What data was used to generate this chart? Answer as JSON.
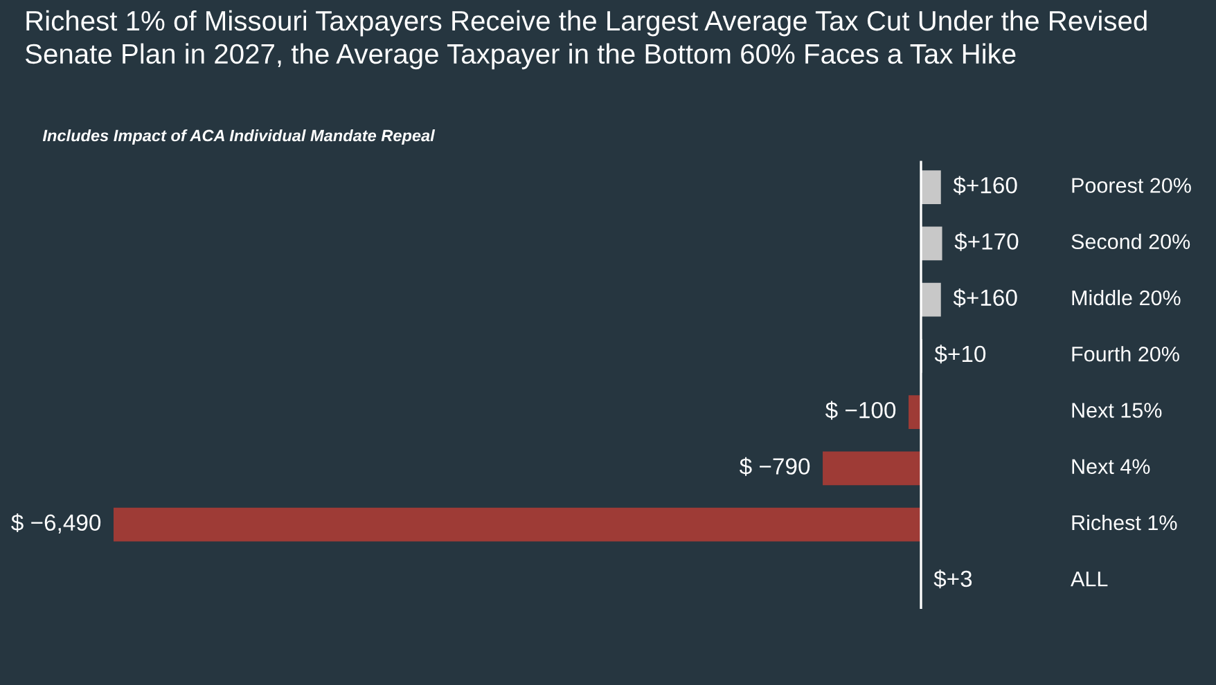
{
  "chart_data": {
    "type": "bar",
    "orientation": "horizontal",
    "title": "Richest 1% of Missouri Taxpayers Receive the Largest Average Tax Cut Under the Revised Senate Plan in 2027, the Average Taxpayer in the Bottom 60% Faces a Tax Hike",
    "subtitle": "Includes Impact of ACA Individual Mandate Repeal",
    "categories": [
      "Poorest 20%",
      "Second 20%",
      "Middle 20%",
      "Fourth 20%",
      "Next 15%",
      "Next 4%",
      "Richest 1%",
      "ALL"
    ],
    "values": [
      160,
      170,
      160,
      10,
      -100,
      -790,
      -6490,
      3
    ],
    "colors": [
      "#c8c8c8",
      "#c8c8c8",
      "#c8c8c8",
      "#c8c8c8",
      "#9e3b36",
      "#9e3b36",
      "#9e3b36",
      "#c8c8c8"
    ],
    "value_labels": [
      "$+160",
      "$+170",
      "$+160",
      "$+10",
      "$ −100",
      "$ −790",
      "$ −6,490",
      "$+3"
    ],
    "legend": false
  }
}
